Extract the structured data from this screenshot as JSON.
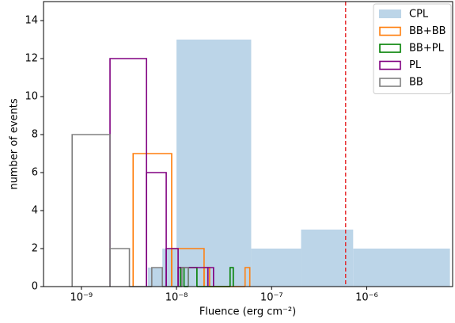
{
  "chart_data": {
    "type": "histogram",
    "xlabel": "Fluence (erg cm⁻²)",
    "ylabel": "number of events",
    "xlim": [
      4e-10,
      8e-06
    ],
    "xscale": "log",
    "xticks": [
      {
        "value": 1e-09,
        "label": "10⁻⁹"
      },
      {
        "value": 1e-08,
        "label": "10⁻⁸"
      },
      {
        "value": 1e-07,
        "label": "10⁻⁷"
      },
      {
        "value": 1e-06,
        "label": "10⁻⁶"
      }
    ],
    "ylim": [
      0,
      15
    ],
    "yticks": [
      0,
      2,
      4,
      6,
      8,
      10,
      12,
      14
    ],
    "grid": false,
    "legend": "upper right",
    "vline": {
      "value": 6e-07,
      "color": "#e41a1c"
    },
    "series": [
      {
        "name": "CPL",
        "color": "#bcd5e8",
        "histtype": "stepfilled",
        "bins": [
          5e-09,
          7.1e-09,
          1e-08,
          6.1e-08,
          2.04e-07,
          7.2e-07,
          7.5e-06
        ],
        "values": [
          1,
          2,
          13,
          2,
          3,
          2
        ]
      },
      {
        "name": "BB+BB",
        "color": "#ff7f0e",
        "histtype": "step",
        "bins": [
          3.5e-09,
          8.9e-09,
          1.95e-08,
          2.23e-08,
          5.26e-08,
          5.9e-08
        ],
        "values": [
          7,
          2,
          1,
          0,
          1
        ]
      },
      {
        "name": "BB+PL",
        "color": "#008000",
        "histtype": "step",
        "bins": [
          1.1e-08,
          1.2e-08,
          1.33e-08,
          1.64e-08,
          3.66e-08,
          3.95e-08
        ],
        "values": [
          1,
          0,
          1,
          0,
          1
        ]
      },
      {
        "name": "PL",
        "color": "#800080",
        "histtype": "step",
        "bins": [
          2e-09,
          4.84e-09,
          7.8e-09,
          1.04e-08,
          2.14e-08,
          2.45e-08
        ],
        "values": [
          12,
          6,
          2,
          1,
          1
        ]
      },
      {
        "name": "BB",
        "color": "#808080",
        "histtype": "step",
        "bins": [
          8e-10,
          2e-09,
          3.2e-09,
          5.5e-09,
          7.1e-09,
          1.14e-08,
          1.33e-08
        ],
        "values": [
          8,
          2,
          0,
          1,
          0,
          1
        ]
      }
    ]
  }
}
